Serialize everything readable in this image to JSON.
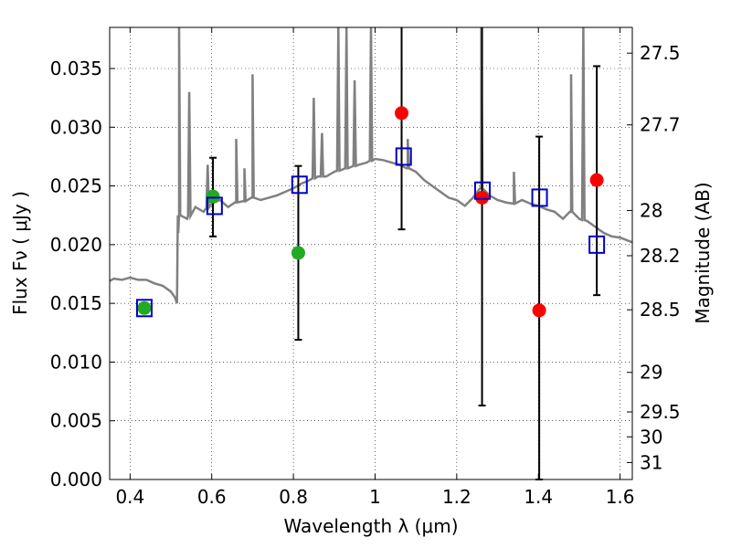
{
  "chart_data": {
    "type": "scatter",
    "x_ticks": [
      "0.4",
      "0.6",
      "0.8",
      "1",
      "1.2",
      "1.4",
      "1.6"
    ],
    "y_ticks": [
      "0.000",
      "0.005",
      "0.010",
      "0.015",
      "0.020",
      "0.025",
      "0.030",
      "0.035"
    ],
    "y2_ticks": [
      "27.5",
      "27.7",
      "28",
      "28.2",
      "28.5",
      "29",
      "29.5",
      "30",
      "31"
    ],
    "xlabel": "Wavelength  λ (μm)",
    "ylabel": "Flux  Fν  ( μJy )",
    "y2label": "Magnitude (AB)",
    "xlim": [
      0.35,
      1.63
    ],
    "ylim": [
      0.0,
      0.0385
    ],
    "grid": true,
    "colors": {
      "spectrum": "#808080",
      "model_box": "#0000cc",
      "detection": "#22aa22",
      "non_detection": "#ff0000",
      "errorbar": "#000000"
    },
    "spectrum_continuum": [
      [
        0.35,
        0.0169
      ],
      [
        0.36,
        0.0171
      ],
      [
        0.38,
        0.017
      ],
      [
        0.4,
        0.0172
      ],
      [
        0.42,
        0.017
      ],
      [
        0.44,
        0.017
      ],
      [
        0.46,
        0.0167
      ],
      [
        0.48,
        0.0165
      ],
      [
        0.5,
        0.016
      ],
      [
        0.51,
        0.0155
      ],
      [
        0.515,
        0.015
      ],
      [
        0.518,
        0.021
      ],
      [
        0.52,
        0.0225
      ],
      [
        0.54,
        0.0222
      ],
      [
        0.56,
        0.0232
      ],
      [
        0.58,
        0.0228
      ],
      [
        0.6,
        0.0235
      ],
      [
        0.62,
        0.0238
      ],
      [
        0.64,
        0.0232
      ],
      [
        0.66,
        0.0236
      ],
      [
        0.68,
        0.0237
      ],
      [
        0.7,
        0.024
      ],
      [
        0.72,
        0.0238
      ],
      [
        0.74,
        0.024
      ],
      [
        0.76,
        0.0242
      ],
      [
        0.78,
        0.0245
      ],
      [
        0.8,
        0.0248
      ],
      [
        0.82,
        0.0252
      ],
      [
        0.84,
        0.0255
      ],
      [
        0.86,
        0.0258
      ],
      [
        0.88,
        0.0258
      ],
      [
        0.9,
        0.0262
      ],
      [
        0.92,
        0.0264
      ],
      [
        0.94,
        0.0266
      ],
      [
        0.96,
        0.0268
      ],
      [
        0.98,
        0.027
      ],
      [
        1.0,
        0.0273
      ],
      [
        1.02,
        0.0272
      ],
      [
        1.04,
        0.027
      ],
      [
        1.06,
        0.0268
      ],
      [
        1.08,
        0.0265
      ],
      [
        1.1,
        0.0262
      ],
      [
        1.12,
        0.0255
      ],
      [
        1.14,
        0.025
      ],
      [
        1.16,
        0.0245
      ],
      [
        1.18,
        0.024
      ],
      [
        1.2,
        0.0238
      ],
      [
        1.22,
        0.0233
      ],
      [
        1.24,
        0.024
      ],
      [
        1.26,
        0.0248
      ],
      [
        1.28,
        0.0242
      ],
      [
        1.3,
        0.0238
      ],
      [
        1.32,
        0.0236
      ],
      [
        1.34,
        0.0235
      ],
      [
        1.36,
        0.0238
      ],
      [
        1.38,
        0.0235
      ],
      [
        1.4,
        0.0233
      ],
      [
        1.42,
        0.023
      ],
      [
        1.44,
        0.0228
      ],
      [
        1.46,
        0.0222
      ],
      [
        1.48,
        0.0228
      ],
      [
        1.5,
        0.0222
      ],
      [
        1.52,
        0.022
      ],
      [
        1.54,
        0.0215
      ],
      [
        1.56,
        0.021
      ],
      [
        1.58,
        0.0207
      ],
      [
        1.6,
        0.0206
      ],
      [
        1.63,
        0.0202
      ]
    ],
    "spectrum_lines": [
      [
        0.52,
        0.0385
      ],
      [
        0.545,
        0.033
      ],
      [
        0.59,
        0.0268
      ],
      [
        0.66,
        0.029
      ],
      [
        0.68,
        0.0265
      ],
      [
        0.7,
        0.0345
      ],
      [
        0.85,
        0.0325
      ],
      [
        0.87,
        0.0295
      ],
      [
        0.91,
        0.0385
      ],
      [
        0.93,
        0.0385
      ],
      [
        0.95,
        0.034
      ],
      [
        0.99,
        0.0385
      ],
      [
        1.08,
        0.029
      ],
      [
        1.26,
        0.0385
      ],
      [
        1.34,
        0.0262
      ],
      [
        1.48,
        0.0345
      ],
      [
        1.51,
        0.0385
      ]
    ],
    "model_boxes": [
      {
        "x": 0.435,
        "y": 0.0146
      },
      {
        "x": 0.607,
        "y": 0.0233
      },
      {
        "x": 0.815,
        "y": 0.0251
      },
      {
        "x": 1.07,
        "y": 0.0275
      },
      {
        "x": 1.263,
        "y": 0.0246
      },
      {
        "x": 1.403,
        "y": 0.024
      },
      {
        "x": 1.543,
        "y": 0.02
      }
    ],
    "detections": [
      {
        "x": 0.435,
        "y": 0.0146,
        "err_low": 0.0146,
        "err_high": 0.0146
      },
      {
        "x": 0.603,
        "y": 0.0241,
        "err_low": 0.0207,
        "err_high": 0.0274
      },
      {
        "x": 0.812,
        "y": 0.0193,
        "err_low": 0.0119,
        "err_high": 0.0267
      }
    ],
    "non_detections": [
      {
        "x": 1.065,
        "y": 0.0312,
        "err_low": 0.0213,
        "err_high": 0.0385
      },
      {
        "x": 1.262,
        "y": 0.024,
        "err_low": 0.0063,
        "err_high": 0.0385
      },
      {
        "x": 1.402,
        "y": 0.0144,
        "err_low": 0.0,
        "err_high": 0.0292
      },
      {
        "x": 1.543,
        "y": 0.0255,
        "err_low": 0.0157,
        "err_high": 0.0352
      }
    ]
  }
}
